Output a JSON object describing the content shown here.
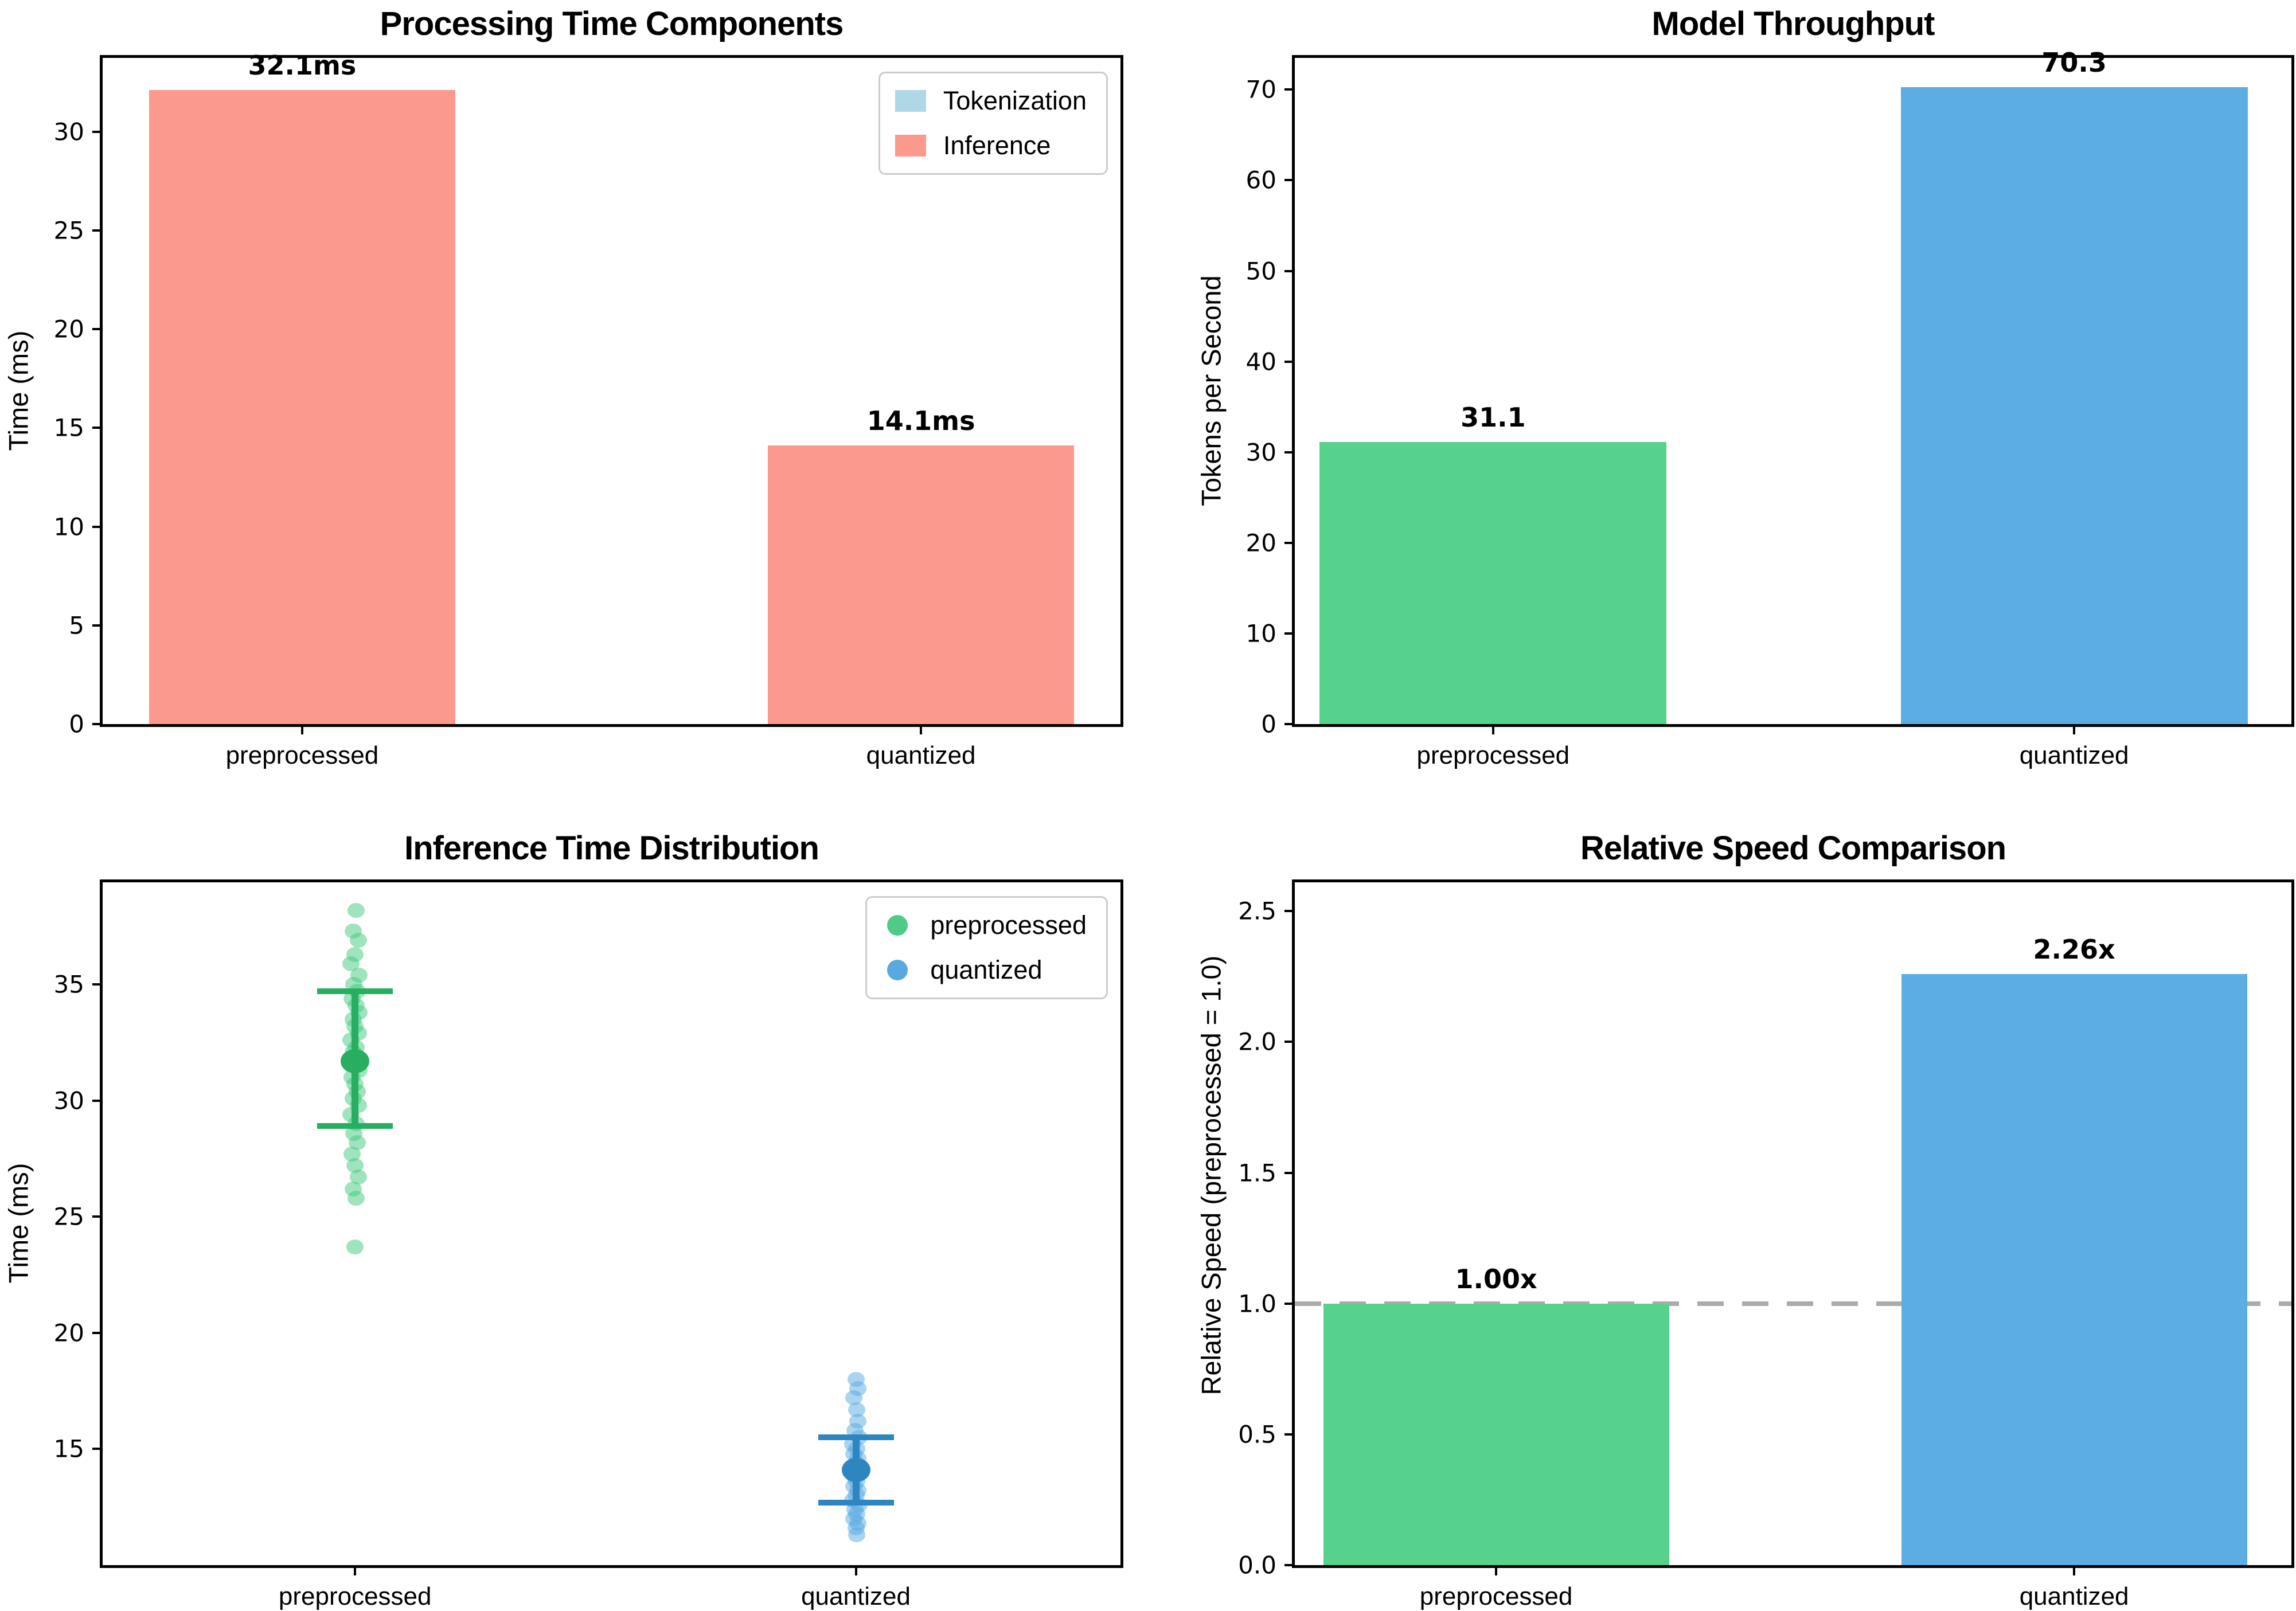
{
  "figure": {
    "background": "#ffffff"
  },
  "chart_data": [
    {
      "id": "tl",
      "type": "bar",
      "title": "Processing Time Components",
      "ylabel": "Time (ms)",
      "categories": [
        "preprocessed",
        "quantized"
      ],
      "values": [
        32.1,
        14.1
      ],
      "value_labels": [
        "32.1ms",
        "14.1ms"
      ],
      "bar_colors": [
        "#FA998C",
        "#FA998C"
      ],
      "ylim": [
        0,
        33.73
      ],
      "ytick_vals": [
        0,
        5,
        10,
        15,
        20,
        25,
        30
      ],
      "ytick_labels": [
        "0",
        "5",
        "10",
        "15",
        "20",
        "25",
        "30"
      ],
      "centers": [
        0.196,
        0.804
      ],
      "bar_width": 0.301,
      "legend": {
        "marker": "patch",
        "items": [
          {
            "label": "Tokenization",
            "color": "#ADD8E6"
          },
          {
            "label": "Inference",
            "color": "#FA998C"
          }
        ]
      }
    },
    {
      "id": "tr",
      "type": "bar",
      "title": "Model Throughput",
      "ylabel": "Tokens per Second",
      "categories": [
        "preprocessed",
        "quantized"
      ],
      "values": [
        31.1,
        70.3
      ],
      "value_labels": [
        "31.1",
        "70.3"
      ],
      "bar_colors": [
        "#56D28C",
        "#5BADE2"
      ],
      "ylim": [
        0,
        73.5
      ],
      "ytick_vals": [
        0,
        10,
        20,
        30,
        40,
        50,
        60,
        70
      ],
      "ytick_labels": [
        "0",
        "10",
        "20",
        "30",
        "40",
        "50",
        "60",
        "70"
      ],
      "centers": [
        0.199,
        0.782
      ],
      "bar_width": 0.348
    },
    {
      "id": "bl",
      "type": "scatter",
      "title": "Inference Time Distribution",
      "ylabel": "Time (ms)",
      "categories": [
        "preprocessed",
        "quantized"
      ],
      "ylim": [
        10.0,
        39.4
      ],
      "ytick_vals": [
        15,
        20,
        25,
        30,
        35
      ],
      "ytick_labels": [
        "15",
        "20",
        "25",
        "30",
        "35"
      ],
      "centers": [
        0.248,
        0.74
      ],
      "series": [
        {
          "name": "preprocessed",
          "point_color": "#3FC97D",
          "line_color": "#27AE60",
          "mean": 31.7,
          "err_low": 28.9,
          "err_high": 34.7,
          "points": [
            [
              38.2,
              0.001
            ],
            [
              37.3,
              -0.002
            ],
            [
              36.9,
              0.003
            ],
            [
              36.3,
              0.0
            ],
            [
              35.9,
              -0.004
            ],
            [
              35.4,
              0.004
            ],
            [
              35.0,
              -0.001
            ],
            [
              34.7,
              0.002
            ],
            [
              34.4,
              -0.003
            ],
            [
              34.1,
              0.001
            ],
            [
              33.8,
              0.004
            ],
            [
              33.5,
              -0.002
            ],
            [
              33.2,
              0.0
            ],
            [
              32.9,
              0.003
            ],
            [
              32.6,
              -0.004
            ],
            [
              32.3,
              0.001
            ],
            [
              32.1,
              -0.002
            ],
            [
              31.9,
              0.002
            ],
            [
              31.6,
              -0.001
            ],
            [
              31.3,
              0.004
            ],
            [
              31.0,
              -0.003
            ],
            [
              30.7,
              0.0
            ],
            [
              30.4,
              0.002
            ],
            [
              30.1,
              -0.002
            ],
            [
              29.8,
              0.003
            ],
            [
              29.4,
              -0.004
            ],
            [
              29.0,
              0.001
            ],
            [
              28.6,
              -0.001
            ],
            [
              28.2,
              0.002
            ],
            [
              27.7,
              -0.003
            ],
            [
              27.2,
              0.0
            ],
            [
              26.7,
              0.003
            ],
            [
              26.2,
              -0.002
            ],
            [
              25.8,
              0.001
            ],
            [
              23.7,
              0.0
            ]
          ]
        },
        {
          "name": "quantized",
          "point_color": "#57A9E2",
          "line_color": "#2E86C1",
          "mean": 14.1,
          "err_low": 12.7,
          "err_high": 15.5,
          "points": [
            [
              18.0,
              0.0
            ],
            [
              17.6,
              0.002
            ],
            [
              17.2,
              -0.002
            ],
            [
              16.7,
              0.001
            ],
            [
              16.2,
              0.002
            ],
            [
              15.8,
              -0.001
            ],
            [
              15.5,
              0.003
            ],
            [
              15.2,
              -0.003
            ],
            [
              15.0,
              0.001
            ],
            [
              14.8,
              -0.002
            ],
            [
              14.6,
              0.002
            ],
            [
              14.4,
              0.0
            ],
            [
              14.2,
              -0.003
            ],
            [
              14.0,
              0.003
            ],
            [
              13.8,
              -0.001
            ],
            [
              13.6,
              0.001
            ],
            [
              13.4,
              -0.002
            ],
            [
              13.2,
              0.002
            ],
            [
              13.0,
              0.0
            ],
            [
              12.8,
              -0.003
            ],
            [
              12.6,
              0.003
            ],
            [
              12.4,
              -0.001
            ],
            [
              12.2,
              0.001
            ],
            [
              12.0,
              -0.002
            ],
            [
              11.8,
              0.002
            ],
            [
              11.6,
              0.0
            ],
            [
              11.3,
              0.001
            ]
          ]
        }
      ],
      "legend": {
        "marker": "circle",
        "items": [
          {
            "label": "preprocessed",
            "color": "#4FCB87"
          },
          {
            "label": "quantized",
            "color": "#58A9E0"
          }
        ]
      }
    },
    {
      "id": "br",
      "type": "bar",
      "title": "Relative Speed Comparison",
      "ylabel": "Relative Speed (preprocessed = 1.0)",
      "categories": [
        "preprocessed",
        "quantized"
      ],
      "values": [
        1.0,
        2.26
      ],
      "value_labels": [
        "1.00x",
        "2.26x"
      ],
      "bar_colors": [
        "#56D28C",
        "#5BADE2"
      ],
      "ylim": [
        0,
        2.61
      ],
      "ytick_vals": [
        0.0,
        0.5,
        1.0,
        1.5,
        2.0,
        2.5
      ],
      "ytick_labels": [
        "0.0",
        "0.5",
        "1.0",
        "1.5",
        "2.0",
        "2.5"
      ],
      "centers": [
        0.202,
        0.782
      ],
      "bar_width": 0.347,
      "hline": {
        "value": 1.0,
        "color": "#ababab",
        "style": "dashed"
      }
    }
  ]
}
